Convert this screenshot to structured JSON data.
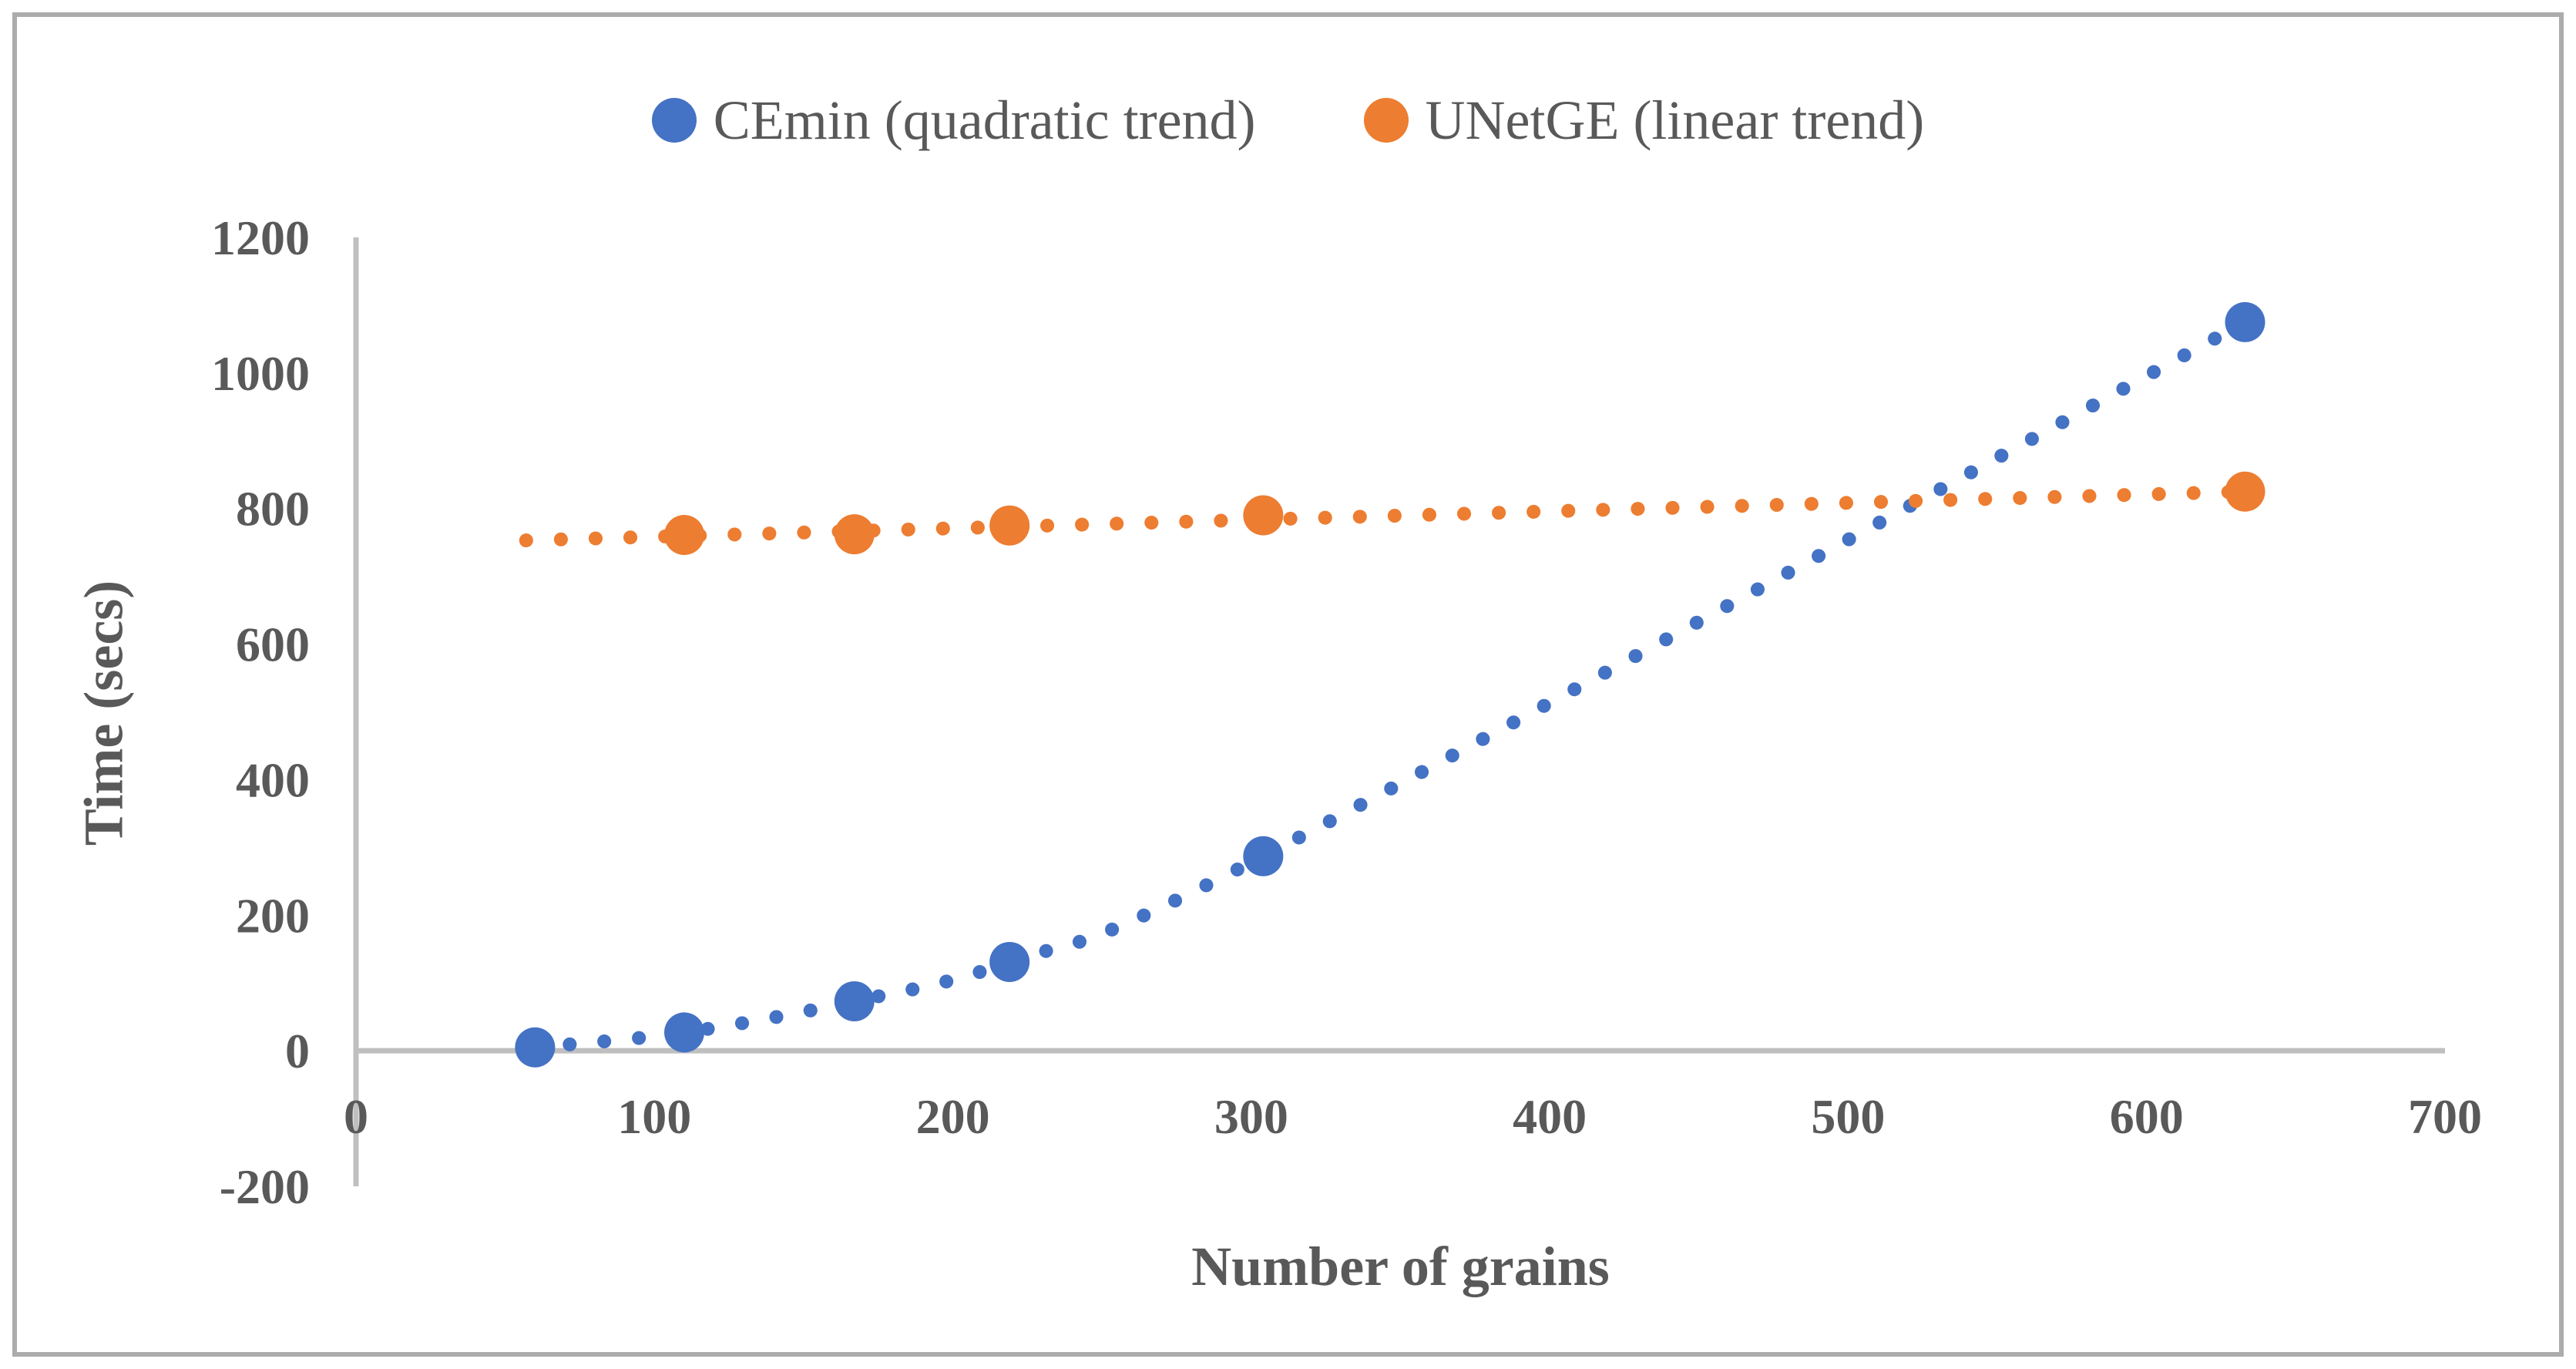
{
  "figure": {
    "background": "#FFFFFF",
    "border_color": "#ACACAC",
    "text_color": "#595959",
    "axis_color": "#BFBFBF"
  },
  "legend": {
    "items": [
      {
        "label": "CEmin (quadratic trend)",
        "color": "#4472C4",
        "marker": "circle"
      },
      {
        "label": "UNetGE (linear trend)",
        "color": "#ED7D31",
        "marker": "circle"
      }
    ]
  },
  "chart_data": {
    "type": "scatter",
    "title": "",
    "xlabel": "Number of grains",
    "ylabel": "Time (secs)",
    "xlim": [
      0,
      700
    ],
    "ylim": [
      -200,
      1200
    ],
    "x_ticks": [
      0,
      100,
      200,
      300,
      400,
      500,
      600,
      700
    ],
    "y_ticks": [
      1200,
      1000,
      800,
      600,
      400,
      200,
      0,
      -200
    ],
    "grid": false,
    "legend_position": "top-center",
    "series": [
      {
        "name": "CEmin (quadratic trend)",
        "color": "#4472C4",
        "trend": "quadratic",
        "marker": "circle",
        "points": [
          [
            60,
            5
          ],
          [
            110,
            27
          ],
          [
            167,
            73
          ],
          [
            219,
            131
          ],
          [
            304,
            287
          ],
          [
            633,
            1075
          ]
        ]
      },
      {
        "name": "UNetGE (linear trend)",
        "color": "#ED7D31",
        "trend": "linear",
        "marker": "circle",
        "points": [
          [
            110,
            761
          ],
          [
            167,
            762
          ],
          [
            219,
            775
          ],
          [
            304,
            790
          ],
          [
            633,
            825
          ]
        ],
        "trend_line": [
          [
            57,
            753
          ],
          [
            633,
            825
          ]
        ]
      }
    ]
  }
}
